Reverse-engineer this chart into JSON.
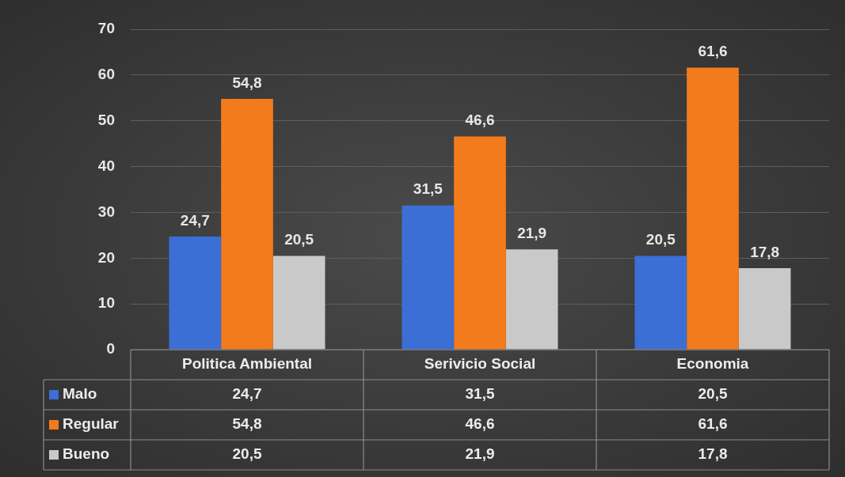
{
  "chart_data": {
    "type": "bar",
    "categories": [
      "Politica Ambiental",
      "Serivicio Social",
      "Economia"
    ],
    "series": [
      {
        "name": "Malo",
        "color": "#3b6fd6",
        "values": [
          24.7,
          31.5,
          20.5
        ],
        "value_labels": [
          "24,7",
          "31,5",
          "20,5"
        ]
      },
      {
        "name": "Regular",
        "color": "#f47b1c",
        "values": [
          54.8,
          46.6,
          61.6
        ],
        "value_labels": [
          "54,8",
          "46,6",
          "61,6"
        ]
      },
      {
        "name": "Bueno",
        "color": "#c9c9c9",
        "values": [
          20.5,
          21.9,
          17.8
        ],
        "value_labels": [
          "20,5",
          "21,9",
          "17,8"
        ]
      }
    ],
    "ylim": [
      0,
      70
    ],
    "yticks": [
      0,
      10,
      20,
      30,
      40,
      50,
      60,
      70
    ],
    "grid": "y",
    "legend": "bottom"
  }
}
